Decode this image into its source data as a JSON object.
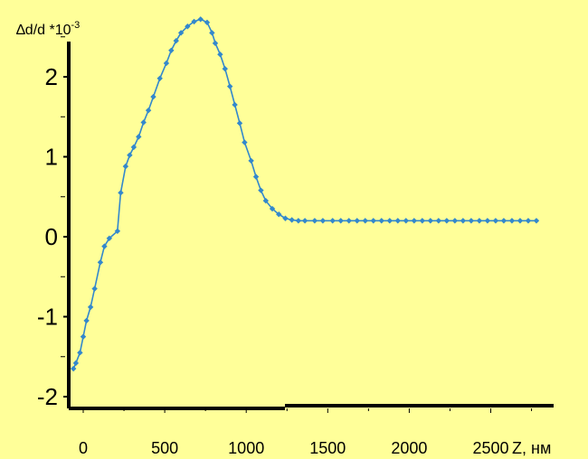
{
  "chart_data": {
    "type": "line",
    "ylabel": {
      "main": "∆d/d *10",
      "sup": "-3"
    },
    "xlabel": "Z, нм",
    "xlim": [
      -60,
      2800
    ],
    "ylim": [
      -2.15,
      2.75
    ],
    "xticks": [
      0,
      500,
      1000,
      1500,
      2000,
      2500
    ],
    "yticks": [
      -2,
      -1,
      0,
      1,
      2
    ],
    "grid": false,
    "colors": {
      "background": "#FFFF99",
      "series": "#3388CC",
      "axis": "#000000"
    },
    "series": [
      {
        "x": [
          -60,
          -45,
          -20,
          0,
          20,
          45,
          70,
          105,
          130,
          160,
          210,
          230,
          260,
          285,
          310,
          340,
          370,
          400,
          430,
          470,
          510,
          540,
          570,
          600,
          640,
          680,
          720,
          760,
          790,
          810,
          840,
          870,
          900,
          930,
          960,
          990,
          1030,
          1060,
          1090,
          1120,
          1160,
          1200,
          1240,
          1280,
          1320,
          1360,
          1420,
          1470,
          1530,
          1580,
          1630,
          1680,
          1730,
          1780,
          1830,
          1880,
          1930,
          1980,
          2030,
          2080,
          2130,
          2180,
          2230,
          2280,
          2330,
          2380,
          2430,
          2480,
          2530,
          2580,
          2630,
          2680,
          2730,
          2780
        ],
        "y": [
          -1.65,
          -1.58,
          -1.45,
          -1.25,
          -1.05,
          -0.88,
          -0.65,
          -0.32,
          -0.12,
          -0.02,
          0.07,
          0.55,
          0.88,
          1.02,
          1.12,
          1.25,
          1.43,
          1.58,
          1.75,
          1.98,
          2.17,
          2.33,
          2.45,
          2.55,
          2.63,
          2.69,
          2.72,
          2.68,
          2.55,
          2.42,
          2.28,
          2.1,
          1.88,
          1.65,
          1.42,
          1.18,
          0.95,
          0.75,
          0.58,
          0.45,
          0.35,
          0.28,
          0.23,
          0.21,
          0.2,
          0.2,
          0.2,
          0.2,
          0.2,
          0.2,
          0.2,
          0.2,
          0.2,
          0.2,
          0.2,
          0.2,
          0.2,
          0.2,
          0.2,
          0.2,
          0.2,
          0.2,
          0.2,
          0.2,
          0.2,
          0.2,
          0.2,
          0.2,
          0.2,
          0.2,
          0.2,
          0.2,
          0.2,
          0.2
        ]
      }
    ]
  }
}
